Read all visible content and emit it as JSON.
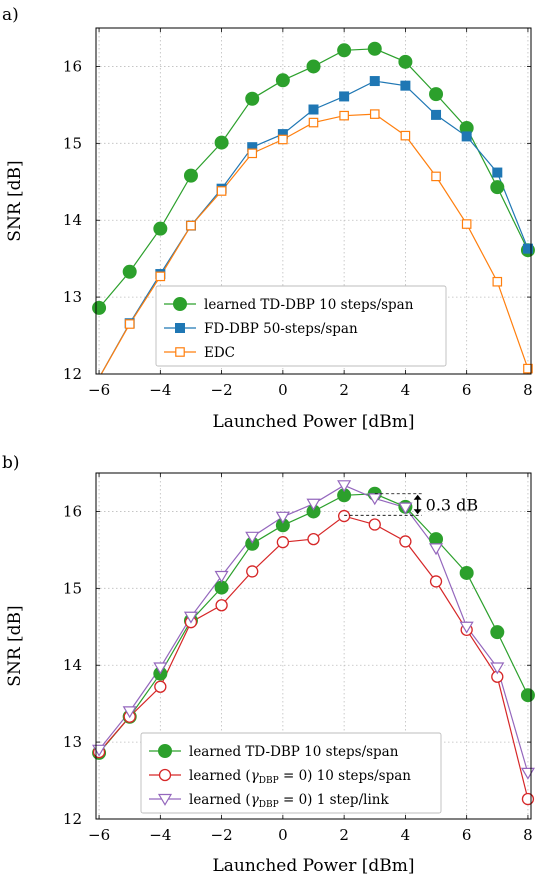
{
  "chart_data": [
    {
      "type": "line",
      "panel_label": "a)",
      "xlabel": "Launched Power [dBm]",
      "ylabel": "SNR [dB]",
      "xlim": [
        -6.1,
        8.1
      ],
      "ylim": [
        12,
        16.5
      ],
      "xticks": [
        -6,
        -4,
        -2,
        0,
        2,
        4,
        6,
        8
      ],
      "xtick_labels": [
        "−6",
        "−4",
        "−2",
        "0",
        "2",
        "4",
        "6",
        "8"
      ],
      "yticks": [
        12,
        13,
        14,
        15,
        16
      ],
      "ytick_labels": [
        "12",
        "13",
        "14",
        "15",
        "16"
      ],
      "grid": true,
      "legend_position": "bottom-center",
      "series": [
        {
          "name": "learned TD-DBP 10 steps/span",
          "color": "#2ca02c",
          "marker": "circle-filled",
          "x": [
            -6,
            -5,
            -4,
            -3,
            -2,
            -1,
            0,
            1,
            2,
            3,
            4,
            5,
            6,
            7,
            8
          ],
          "y": [
            12.86,
            13.33,
            13.89,
            14.58,
            15.01,
            15.58,
            15.82,
            16.0,
            16.21,
            16.23,
            16.06,
            15.64,
            15.2,
            14.43,
            13.61
          ]
        },
        {
          "name": "FD-DBP 50-steps/span",
          "color": "#1f77b4",
          "marker": "square-filled",
          "x": [
            -6,
            -5,
            -4,
            -3,
            -2,
            -1,
            0,
            1,
            2,
            3,
            4,
            5,
            6,
            7,
            8
          ],
          "y": [
            11.95,
            12.66,
            13.3,
            13.93,
            14.41,
            14.95,
            15.12,
            15.44,
            15.61,
            15.81,
            15.75,
            15.37,
            15.09,
            14.62,
            13.63
          ]
        },
        {
          "name": "EDC",
          "color": "#ff7f0e",
          "marker": "square-open",
          "x": [
            -6,
            -5,
            -4,
            -3,
            -2,
            -1,
            0,
            1,
            2,
            3,
            4,
            5,
            6,
            7,
            8
          ],
          "y": [
            11.95,
            12.65,
            13.27,
            13.93,
            14.38,
            14.87,
            15.05,
            15.27,
            15.36,
            15.38,
            15.1,
            14.57,
            13.95,
            13.2,
            12.07
          ]
        }
      ]
    },
    {
      "type": "line",
      "panel_label": "b)",
      "xlabel": "Launched Power [dBm]",
      "ylabel": "SNR [dB]",
      "xlim": [
        -6.1,
        8.1
      ],
      "ylim": [
        12,
        16.5
      ],
      "xticks": [
        -6,
        -4,
        -2,
        0,
        2,
        4,
        6,
        8
      ],
      "xtick_labels": [
        "−6",
        "−4",
        "−2",
        "0",
        "2",
        "4",
        "6",
        "8"
      ],
      "yticks": [
        12,
        13,
        14,
        15,
        16
      ],
      "ytick_labels": [
        "12",
        "13",
        "14",
        "15",
        "16"
      ],
      "grid": true,
      "legend_position": "bottom-center",
      "annotation": {
        "text": "0.3 dB",
        "x": 4.4,
        "y_top": 16.23,
        "y_bottom": 15.95
      },
      "series": [
        {
          "name": "learned TD-DBP 10 steps/span",
          "color": "#2ca02c",
          "marker": "circle-filled",
          "x": [
            -6,
            -5,
            -4,
            -3,
            -2,
            -1,
            0,
            1,
            2,
            3,
            4,
            5,
            6,
            7,
            8
          ],
          "y": [
            12.86,
            13.33,
            13.89,
            14.58,
            15.01,
            15.58,
            15.82,
            16.0,
            16.21,
            16.23,
            16.06,
            15.64,
            15.2,
            14.43,
            13.61
          ]
        },
        {
          "name_parts": [
            "learned (",
            "γ",
            "DBP",
            " = 0) 10 steps/span"
          ],
          "color": "#d62728",
          "marker": "circle-open",
          "x": [
            -6,
            -5,
            -4,
            -3,
            -2,
            -1,
            0,
            1,
            2,
            3,
            4,
            5,
            6,
            7,
            8
          ],
          "y": [
            12.87,
            13.33,
            13.72,
            14.56,
            14.78,
            15.22,
            15.6,
            15.64,
            15.94,
            15.83,
            15.61,
            15.09,
            14.46,
            13.85,
            12.26
          ]
        },
        {
          "name_parts": [
            "learned (",
            "γ",
            "DBP",
            " = 0) 1 step/link"
          ],
          "color": "#9467bd",
          "marker": "triangle-down-open",
          "x": [
            -6,
            -5,
            -4,
            -3,
            -2,
            -1,
            0,
            1,
            2,
            3,
            4,
            5,
            6,
            7,
            8
          ],
          "y": [
            12.9,
            13.4,
            13.97,
            14.63,
            15.16,
            15.67,
            15.93,
            16.1,
            16.34,
            16.17,
            16.05,
            15.52,
            14.5,
            13.97,
            12.6
          ]
        }
      ]
    }
  ]
}
